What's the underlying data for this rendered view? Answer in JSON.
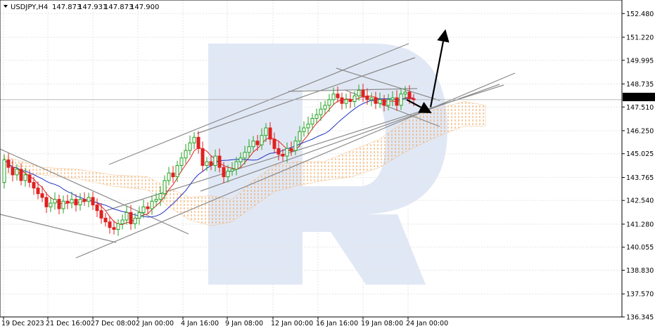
{
  "header": {
    "symbol": "USDJPY,H4",
    "open": "147.873",
    "high": "147.931",
    "low": "147.873",
    "close": "147.900"
  },
  "chart_data": {
    "type": "candlestick",
    "symbol": "USDJPY",
    "timeframe": "H4",
    "ylim": [
      136.345,
      153.2
    ],
    "y_ticks": [
      "152.480",
      "151.220",
      "149.995",
      "148.735",
      "147.510",
      "146.250",
      "145.025",
      "143.765",
      "142.540",
      "141.280",
      "140.055",
      "138.830",
      "137.570",
      "136.345"
    ],
    "x_ticks": [
      "19 Dec 2023",
      "21 Dec 16:00",
      "27 Dec 08:00",
      "2 Jan 00:00",
      "4 Jan 16:00",
      "9 Jan 08:00",
      "12 Jan 00:00",
      "16 Jan 16:00",
      "19 Jan 08:00",
      "24 Jan 00:00"
    ],
    "current_price": "147.900",
    "grid": true,
    "ohlc_path": [
      [
        0,
        143.5
      ],
      [
        6,
        144.7
      ],
      [
        12,
        144.3
      ],
      [
        18,
        143.9
      ],
      [
        24,
        144.2
      ],
      [
        30,
        143.6
      ],
      [
        36,
        143.9
      ],
      [
        42,
        143.5
      ],
      [
        48,
        143.2
      ],
      [
        54,
        142.9
      ],
      [
        60,
        142.7
      ],
      [
        66,
        142.2
      ],
      [
        72,
        142.4
      ],
      [
        78,
        142.6
      ],
      [
        84,
        142.1
      ],
      [
        90,
        142.5
      ],
      [
        96,
        142.4
      ],
      [
        102,
        142.6
      ],
      [
        108,
        142.3
      ],
      [
        114,
        142.6
      ],
      [
        120,
        142.5
      ],
      [
        126,
        142.7
      ],
      [
        132,
        142.3
      ],
      [
        138,
        142.0
      ],
      [
        144,
        141.6
      ],
      [
        150,
        141.4
      ],
      [
        156,
        141.1
      ],
      [
        162,
        141.0
      ],
      [
        168,
        141.3
      ],
      [
        174,
        141.5
      ],
      [
        180,
        141.9
      ],
      [
        186,
        141.3
      ],
      [
        192,
        141.6
      ],
      [
        198,
        141.9
      ],
      [
        204,
        142.2
      ],
      [
        210,
        142.1
      ],
      [
        216,
        142.5
      ],
      [
        222,
        142.6
      ],
      [
        228,
        142.9
      ],
      [
        234,
        143.6
      ],
      [
        240,
        144.0
      ],
      [
        246,
        143.8
      ],
      [
        252,
        144.4
      ],
      [
        258,
        144.8
      ],
      [
        264,
        145.2
      ],
      [
        270,
        145.6
      ],
      [
        276,
        145.9
      ],
      [
        282,
        145.3
      ],
      [
        288,
        144.4
      ],
      [
        294,
        144.6
      ],
      [
        300,
        144.4
      ],
      [
        306,
        144.9
      ],
      [
        312,
        144.3
      ],
      [
        318,
        143.8
      ],
      [
        324,
        144.1
      ],
      [
        330,
        144.2
      ],
      [
        336,
        144.6
      ],
      [
        342,
        144.8
      ],
      [
        348,
        145.1
      ],
      [
        354,
        145.4
      ],
      [
        360,
        145.7
      ],
      [
        366,
        145.5
      ],
      [
        372,
        146.0
      ],
      [
        378,
        146.4
      ],
      [
        384,
        145.8
      ],
      [
        390,
        145.3
      ],
      [
        396,
        145.0
      ],
      [
        402,
        144.9
      ],
      [
        408,
        145.3
      ],
      [
        414,
        145.2
      ],
      [
        420,
        145.7
      ],
      [
        426,
        146.2
      ],
      [
        432,
        146.4
      ],
      [
        438,
        146.6
      ],
      [
        444,
        146.9
      ],
      [
        450,
        147.1
      ],
      [
        456,
        147.4
      ],
      [
        462,
        147.6
      ],
      [
        468,
        147.9
      ],
      [
        474,
        148.2
      ],
      [
        480,
        148.0
      ],
      [
        486,
        147.7
      ],
      [
        492,
        147.9
      ],
      [
        498,
        147.8
      ],
      [
        504,
        148.1
      ],
      [
        510,
        148.4
      ],
      [
        516,
        148.1
      ],
      [
        522,
        147.9
      ],
      [
        528,
        148.0
      ],
      [
        534,
        147.7
      ],
      [
        540,
        147.9
      ],
      [
        546,
        147.6
      ],
      [
        552,
        147.9
      ],
      [
        558,
        148.0
      ],
      [
        564,
        147.6
      ],
      [
        570,
        148.2
      ],
      [
        576,
        148.3
      ],
      [
        582,
        147.95
      ],
      [
        588,
        147.9
      ]
    ],
    "annotations": {
      "forecast_arrow_down": {
        "from": [
          578,
          147.9
        ],
        "to": [
          608,
          147.3
        ]
      },
      "forecast_arrow_up": {
        "from": [
          612,
          147.5
        ],
        "to": [
          632,
          151.4
        ]
      }
    }
  }
}
